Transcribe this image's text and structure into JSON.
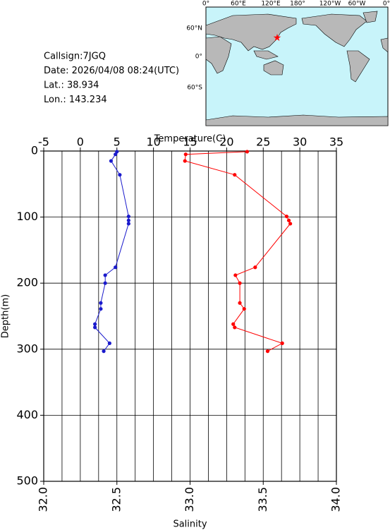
{
  "info": [
    "Callsign:7JGQ",
    "Date:  2026/04/08 08:24(UTC)",
    "Lat.:  38.934",
    "Lon.:  143.234"
  ],
  "map": {
    "lon_labels": [
      "0°",
      "60°E",
      "120°E",
      "180°",
      "120°W",
      "60°W",
      "0°"
    ],
    "lat_labels": [
      "60°N",
      "0°",
      "60°S"
    ]
  },
  "chart_data": {
    "type": "line",
    "x_label": "Salinity",
    "x2_label": "Temperature(C)",
    "y_label": "Depth(m)",
    "xlim": [
      32,
      34
    ],
    "xticks": [
      {
        "value": 32,
        "label": "32.0"
      },
      32.5,
      {
        "value": 33,
        "label": "33.0"
      },
      33.5,
      {
        "value": 34,
        "label": "34.0"
      }
    ],
    "x2lim": [
      -5,
      35
    ],
    "x2ticks": [
      -5,
      0,
      5,
      10,
      15,
      20,
      25,
      30,
      35
    ],
    "ylim": [
      0,
      500
    ],
    "yticks": [
      0,
      100,
      200,
      300,
      400,
      500
    ],
    "y_inverted": true,
    "grid": true,
    "depth": [
      1,
      5,
      15,
      36,
      99,
      105,
      110,
      176,
      188,
      200,
      230,
      239,
      262,
      267,
      291,
      303
    ],
    "series": [
      {
        "color": "#ff0000",
        "axis": "x2",
        "values": [
          22.8,
          14.4,
          14.3,
          21.1,
          28.2,
          28.5,
          28.7,
          23.9,
          21.2,
          21.8,
          21.8,
          22.4,
          20.9,
          21.1,
          27.6,
          25.6
        ]
      },
      {
        "color": "#1a1acc",
        "axis": "x",
        "values": [
          32.5,
          32.49,
          32.46,
          32.52,
          32.58,
          32.58,
          32.58,
          32.49,
          32.42,
          32.42,
          32.39,
          32.39,
          32.35,
          32.35,
          32.45,
          32.41
        ]
      }
    ]
  }
}
